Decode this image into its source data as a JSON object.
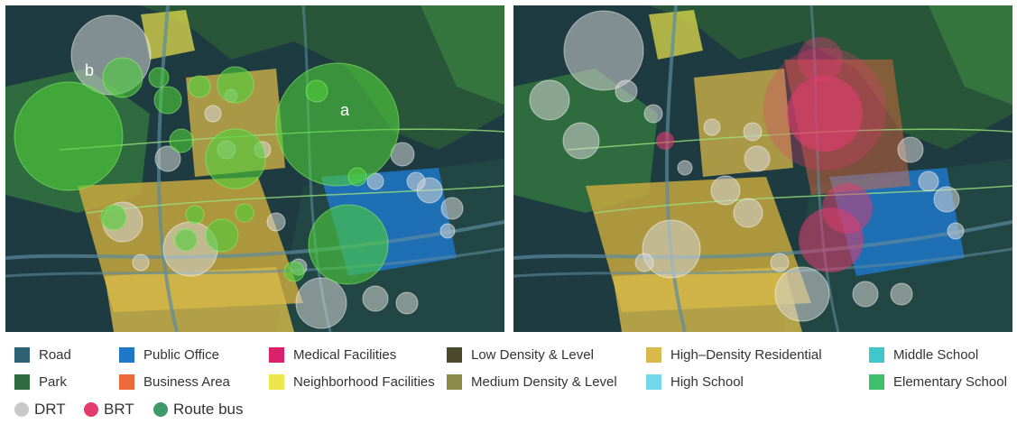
{
  "maps": [
    {
      "id": "left",
      "markers": [
        "a",
        "b"
      ]
    },
    {
      "id": "right",
      "markers": []
    }
  ],
  "legend": {
    "land_use": [
      {
        "label": "Road",
        "color": "#2f6275"
      },
      {
        "label": "Park",
        "color": "#2e6b3e"
      },
      {
        "label": "Public Office",
        "color": "#1f77c9"
      },
      {
        "label": "Business Area",
        "color": "#ef6a3a"
      },
      {
        "label": "Medical Facilities",
        "color": "#d9226a"
      },
      {
        "label": "Neighborhood Facilities",
        "color": "#ece64a"
      },
      {
        "label": "Low Density & Level",
        "color": "#4b4a2a"
      },
      {
        "label": "Medium Density & Level",
        "color": "#8b8a4a"
      },
      {
        "label": "High–Density Residential",
        "color": "#d8ba4a"
      },
      {
        "label": "High School",
        "color": "#6fd8ea"
      },
      {
        "label": "Middle School",
        "color": "#3fc7c9"
      },
      {
        "label": "Elementary School",
        "color": "#3fbf6a"
      }
    ],
    "transit": [
      {
        "label": "DRT",
        "color": "#c8c8c8"
      },
      {
        "label": "BRT",
        "color": "#e23c6e"
      },
      {
        "label": "Route bus",
        "color": "#3e9a6a"
      }
    ]
  }
}
